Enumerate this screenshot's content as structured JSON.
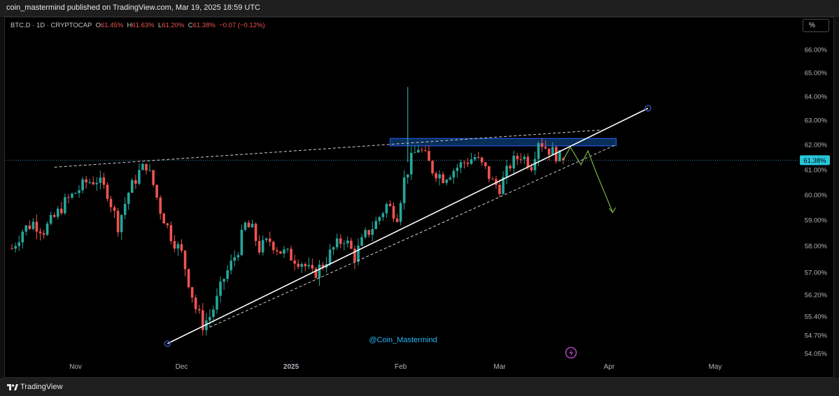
{
  "header": {
    "title": "coin_mastermind published on TradingView.com, Mar 19, 2025 18:59 UTC"
  },
  "legend": {
    "symbol": "BTC.D · 1D · CRYPTOCAP",
    "o_label": "O",
    "o_value": "61.45%",
    "h_label": "H",
    "h_value": "61.63%",
    "l_label": "L",
    "l_value": "61.20%",
    "c_label": "C",
    "c_value": "61.38%",
    "change": "−0.07 (−0.12%)"
  },
  "toolbar": {
    "scale_label": "%"
  },
  "watermark": "@Coin_Mastermind",
  "footer": {
    "brand": "TradingView",
    "logo_icon": "tradingview-logo-icon"
  },
  "colors": {
    "up": "#26a69a",
    "down": "#ef5350",
    "background": "#000000",
    "price_label": "#26c6da",
    "trend": "#ffffff",
    "projection": "#7cb342",
    "zone": "#1565c0"
  },
  "chart_data": {
    "type": "candlestick",
    "interval": "1D",
    "x_axis": {
      "ticks": [
        "Nov",
        "Dec",
        "2025",
        "Feb",
        "Mar",
        "Apr",
        "May"
      ]
    },
    "y_axis": {
      "position": "right",
      "ticks": [
        "66.00%",
        "65.00%",
        "64.00%",
        "63.00%",
        "62.00%",
        "61.00%",
        "60.00%",
        "59.00%",
        "58.00%",
        "57.00%",
        "56.20%",
        "55.40%",
        "54.70%",
        "54.05%"
      ],
      "last_price": "61.38%",
      "last_value": 61.38
    },
    "close_series": [
      {
        "date": "2024-10-14",
        "close": 57.9
      },
      {
        "date": "2024-10-17",
        "close": 58.6
      },
      {
        "date": "2024-10-20",
        "close": 58.9
      },
      {
        "date": "2024-10-23",
        "close": 58.6
      },
      {
        "date": "2024-10-26",
        "close": 59.1
      },
      {
        "date": "2024-10-29",
        "close": 59.7
      },
      {
        "date": "2024-11-01",
        "close": 60.1
      },
      {
        "date": "2024-11-04",
        "close": 60.5
      },
      {
        "date": "2024-11-07",
        "close": 60.6
      },
      {
        "date": "2024-11-10",
        "close": 60.1
      },
      {
        "date": "2024-11-13",
        "close": 58.8
      },
      {
        "date": "2024-11-16",
        "close": 60.1
      },
      {
        "date": "2024-11-19",
        "close": 60.9
      },
      {
        "date": "2024-11-21",
        "close": 61.2
      },
      {
        "date": "2024-11-23",
        "close": 60.4
      },
      {
        "date": "2024-11-25",
        "close": 59.4
      },
      {
        "date": "2024-11-28",
        "close": 58.4
      },
      {
        "date": "2024-12-01",
        "close": 57.7
      },
      {
        "date": "2024-12-03",
        "close": 56.7
      },
      {
        "date": "2024-12-05",
        "close": 55.7
      },
      {
        "date": "2024-12-07",
        "close": 55.1
      },
      {
        "date": "2024-12-09",
        "close": 55.4
      },
      {
        "date": "2024-12-11",
        "close": 56.0
      },
      {
        "date": "2024-12-13",
        "close": 56.8
      },
      {
        "date": "2024-12-15",
        "close": 57.3
      },
      {
        "date": "2024-12-17",
        "close": 57.9
      },
      {
        "date": "2024-12-19",
        "close": 58.8
      },
      {
        "date": "2024-12-21",
        "close": 58.6
      },
      {
        "date": "2024-12-23",
        "close": 57.9
      },
      {
        "date": "2024-12-26",
        "close": 58.2
      },
      {
        "date": "2024-12-29",
        "close": 57.8
      },
      {
        "date": "2025-01-01",
        "close": 57.6
      },
      {
        "date": "2025-01-04",
        "close": 57.4
      },
      {
        "date": "2025-01-07",
        "close": 56.9
      },
      {
        "date": "2025-01-10",
        "close": 57.3
      },
      {
        "date": "2025-01-13",
        "close": 57.9
      },
      {
        "date": "2025-01-16",
        "close": 58.3
      },
      {
        "date": "2025-01-19",
        "close": 57.6
      },
      {
        "date": "2025-01-22",
        "close": 58.4
      },
      {
        "date": "2025-01-25",
        "close": 58.9
      },
      {
        "date": "2025-01-28",
        "close": 59.6
      },
      {
        "date": "2025-01-31",
        "close": 59.2
      },
      {
        "date": "2025-02-02",
        "close": 60.6
      },
      {
        "date": "2025-02-04",
        "close": 61.4
      },
      {
        "date": "2025-02-06",
        "close": 61.9
      },
      {
        "date": "2025-02-08",
        "close": 61.5
      },
      {
        "date": "2025-02-10",
        "close": 61.0
      },
      {
        "date": "2025-02-13",
        "close": 60.7
      },
      {
        "date": "2025-02-16",
        "close": 61.0
      },
      {
        "date": "2025-02-19",
        "close": 61.3
      },
      {
        "date": "2025-02-22",
        "close": 61.5
      },
      {
        "date": "2025-02-25",
        "close": 61.0
      },
      {
        "date": "2025-02-27",
        "close": 60.5
      },
      {
        "date": "2025-03-01",
        "close": 60.3
      },
      {
        "date": "2025-03-04",
        "close": 61.2
      },
      {
        "date": "2025-03-07",
        "close": 61.6
      },
      {
        "date": "2025-03-10",
        "close": 61.2
      },
      {
        "date": "2025-03-12",
        "close": 62.2
      },
      {
        "date": "2025-03-14",
        "close": 61.9
      },
      {
        "date": "2025-03-16",
        "close": 61.7
      },
      {
        "date": "2025-03-18",
        "close": 61.5
      },
      {
        "date": "2025-03-19",
        "close": 61.38
      }
    ],
    "drawings": [
      {
        "kind": "trendline",
        "style": "solid",
        "from": {
          "date": "2024-11-27",
          "value": 54.4
        },
        "to": {
          "date": "2025-04-12",
          "value": 63.5
        }
      },
      {
        "kind": "trendline",
        "style": "dashed",
        "from": {
          "date": "2024-12-09",
          "value": 55.0
        },
        "to": {
          "date": "2025-04-03",
          "value": 62.0
        }
      },
      {
        "kind": "trendline",
        "style": "dashed",
        "from": {
          "date": "2024-10-26",
          "value": 61.1
        },
        "to": {
          "date": "2025-03-30",
          "value": 62.6
        }
      },
      {
        "kind": "zone",
        "from_date": "2025-01-29",
        "to_date": "2025-04-03",
        "top": 62.25,
        "bottom": 61.95
      },
      {
        "kind": "projection_arrow",
        "points": [
          {
            "date": "2025-03-19",
            "value": 61.38
          },
          {
            "date": "2025-03-21",
            "value": 61.9
          },
          {
            "date": "2025-03-24",
            "value": 61.2
          },
          {
            "date": "2025-03-26",
            "value": 61.75
          },
          {
            "date": "2025-03-28",
            "value": 61.0
          },
          {
            "date": "2025-04-02",
            "value": 59.3
          }
        ]
      }
    ]
  }
}
